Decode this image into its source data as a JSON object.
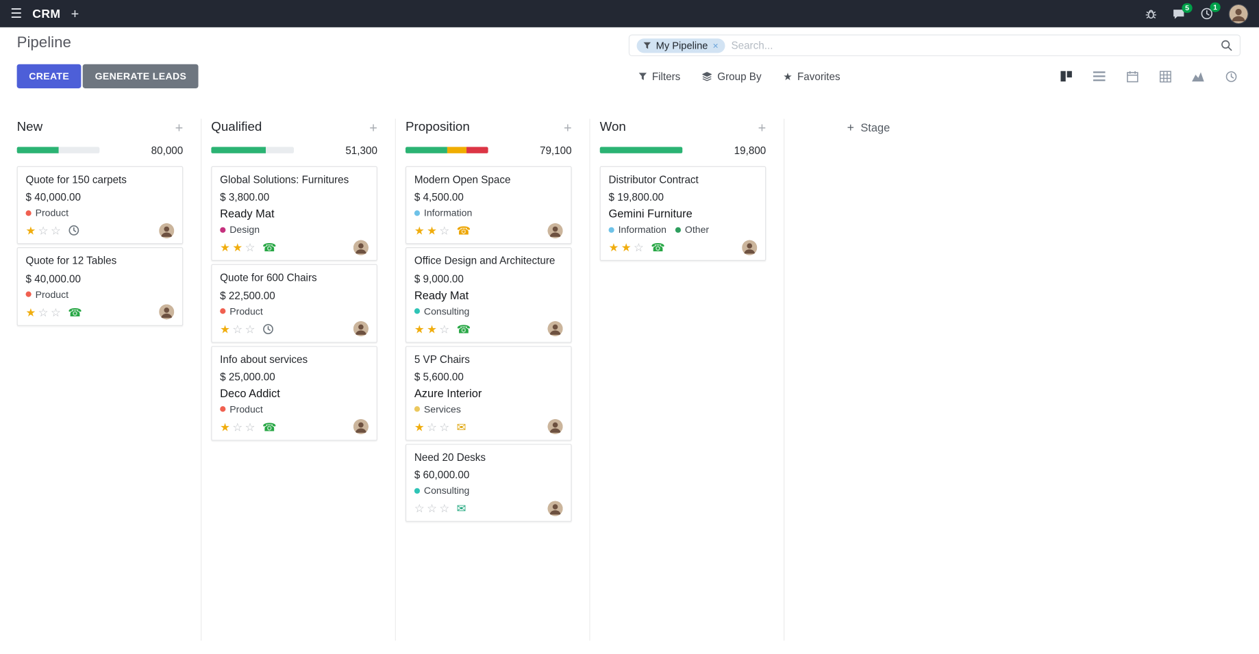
{
  "glyphs": {
    "hamburger": "☰",
    "plus": "+",
    "close": "×",
    "star_filled": "★",
    "star_empty": "☆",
    "phone": "☎",
    "envelope": "✉"
  },
  "colors": {
    "primary": "#4d5fd8",
    "topbar_bg": "#232833",
    "badge_green": "#00a04a",
    "progress_green": "#2bb373",
    "progress_yellow": "#f0ad00",
    "progress_red": "#dc3545",
    "progress_track": "#e9ecef"
  },
  "topbar": {
    "app_name": "CRM",
    "messages_badge": "5",
    "activities_badge": "1"
  },
  "control_panel": {
    "title": "Pipeline",
    "create_label": "CREATE",
    "generate_leads_label": "GENERATE LEADS",
    "search": {
      "facet_label": "My Pipeline",
      "placeholder": "Search..."
    },
    "filters_label": "Filters",
    "group_by_label": "Group By",
    "favorites_label": "Favorites"
  },
  "kanban": {
    "add_stage_label": "Stage",
    "columns": [
      {
        "name": "New",
        "total": "80,000",
        "progress": [
          {
            "color": "#2bb373",
            "pct": 50
          }
        ],
        "cards": [
          {
            "title": "Quote for 150 carpets",
            "amount": "$ 40,000.00",
            "tags": [
              {
                "label": "Product",
                "color": "#f06050"
              }
            ],
            "priority": 1,
            "activity": {
              "icon": "clock",
              "color": "#6c757d"
            }
          },
          {
            "title": "Quote for 12 Tables",
            "amount": "$ 40,000.00",
            "tags": [
              {
                "label": "Product",
                "color": "#f06050"
              }
            ],
            "priority": 1,
            "activity": {
              "icon": "phone",
              "color": "#28a745"
            }
          }
        ]
      },
      {
        "name": "Qualified",
        "total": "51,300",
        "progress": [
          {
            "color": "#2bb373",
            "pct": 66
          }
        ],
        "cards": [
          {
            "title": "Global Solutions: Furnitures",
            "amount": "$ 3,800.00",
            "partner": "Ready Mat",
            "tags": [
              {
                "label": "Design",
                "color": "#c5317e"
              }
            ],
            "priority": 2,
            "activity": {
              "icon": "phone",
              "color": "#28a745"
            }
          },
          {
            "title": "Quote for 600 Chairs",
            "amount": "$ 22,500.00",
            "tags": [
              {
                "label": "Product",
                "color": "#f06050"
              }
            ],
            "priority": 1,
            "activity": {
              "icon": "clock",
              "color": "#6c757d"
            }
          },
          {
            "title": "Info about services",
            "amount": "$ 25,000.00",
            "partner": "Deco Addict",
            "tags": [
              {
                "label": "Product",
                "color": "#f06050"
              }
            ],
            "priority": 1,
            "activity": {
              "icon": "phone",
              "color": "#28a745"
            }
          }
        ]
      },
      {
        "name": "Proposition",
        "total": "79,100",
        "progress": [
          {
            "color": "#2bb373",
            "pct": 50
          },
          {
            "color": "#f0ad00",
            "pct": 24
          },
          {
            "color": "#dc3545",
            "pct": 26
          }
        ],
        "cards": [
          {
            "title": "Modern Open Space",
            "amount": "$ 4,500.00",
            "tags": [
              {
                "label": "Information",
                "color": "#6ec2e8"
              }
            ],
            "priority": 2,
            "activity": {
              "icon": "phone",
              "color": "#eda500"
            }
          },
          {
            "title": "Office Design and Architecture",
            "amount": "$ 9,000.00",
            "partner": "Ready Mat",
            "tags": [
              {
                "label": "Consulting",
                "color": "#2ec4b6"
              }
            ],
            "priority": 2,
            "activity": {
              "icon": "phone",
              "color": "#28a745"
            }
          },
          {
            "title": "5 VP Chairs",
            "amount": "$ 5,600.00",
            "partner": "Azure Interior",
            "tags": [
              {
                "label": "Services",
                "color": "#ebc85e"
              }
            ],
            "priority": 1,
            "activity": {
              "icon": "envelope",
              "color": "#dfa408"
            }
          },
          {
            "title": "Need 20 Desks",
            "amount": "$ 60,000.00",
            "tags": [
              {
                "label": "Consulting",
                "color": "#2ec4b6"
              }
            ],
            "priority": 0,
            "activity": {
              "icon": "envelope",
              "color": "#1ba57b"
            }
          }
        ]
      },
      {
        "name": "Won",
        "total": "19,800",
        "progress": [
          {
            "color": "#2bb373",
            "pct": 100
          }
        ],
        "cards": [
          {
            "title": "Distributor Contract",
            "amount": "$ 19,800.00",
            "partner": "Gemini Furniture",
            "tags": [
              {
                "label": "Information",
                "color": "#6ec2e8"
              },
              {
                "label": "Other",
                "color": "#2e9e5e"
              }
            ],
            "priority": 2,
            "activity": {
              "icon": "phone",
              "color": "#28a745"
            }
          }
        ]
      }
    ]
  }
}
